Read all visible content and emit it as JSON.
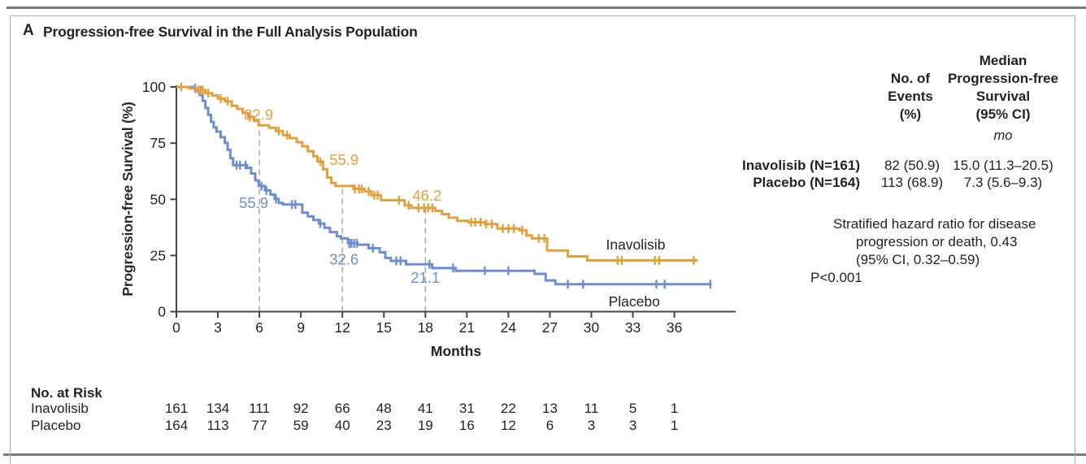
{
  "panel": {
    "label": "A",
    "title": "Progression-free Survival in the Full Analysis Population"
  },
  "colors": {
    "inavolisib": "#e0a13e",
    "placebo": "#6e8fcb",
    "axis": "#454547",
    "text": "#232325",
    "dashed": "#a8aaad",
    "rule": "#777a7c",
    "panel_border": "#aaadb0"
  },
  "chart_data": {
    "type": "line",
    "subtype": "kaplan-meier-step",
    "title": "Progression-free Survival in the Full Analysis Population",
    "xlabel": "Months",
    "ylabel": "Progression-free Survival (%)",
    "xticks": [
      0,
      3,
      6,
      9,
      12,
      15,
      18,
      21,
      24,
      27,
      30,
      33,
      36
    ],
    "yticks": [
      0,
      25,
      50,
      75,
      100
    ],
    "ylim": [
      0,
      100
    ],
    "grid": false,
    "dashed_reference": [
      {
        "month": 6,
        "top_value": 82.9
      },
      {
        "month": 12,
        "top_value": 55.9
      },
      {
        "month": 18,
        "top_value": 46.2
      }
    ],
    "series": [
      {
        "name": "Placebo",
        "color": "#6e8fcb",
        "label": {
          "text": "Placebo",
          "month": 33.1,
          "value": 2.3
        },
        "annotations": [
          {
            "text": "55.9",
            "month": 6,
            "value": 55.9,
            "dx": -7,
            "dy": 27
          },
          {
            "text": "32.6",
            "month": 12,
            "value": 32.6,
            "dx": 2,
            "dy": 32
          },
          {
            "text": "21.1",
            "month": 18,
            "value": 21.1,
            "dx": 0,
            "dy": 23
          }
        ],
        "steps": [
          [
            0,
            100
          ],
          [
            1.2,
            99.4
          ],
          [
            1.5,
            98.2
          ],
          [
            1.7,
            96.3
          ],
          [
            1.9,
            93.8
          ],
          [
            2.1,
            90.7
          ],
          [
            2.3,
            87.6
          ],
          [
            2.5,
            84.5
          ],
          [
            2.7,
            82.0
          ],
          [
            2.9,
            80.1
          ],
          [
            3.2,
            77.6
          ],
          [
            3.5,
            75.1
          ],
          [
            3.7,
            72.0
          ],
          [
            3.9,
            68.3
          ],
          [
            4.1,
            65.2
          ],
          [
            5.1,
            64.0
          ],
          [
            5.4,
            61.5
          ],
          [
            5.7,
            58.4
          ],
          [
            5.95,
            55.9
          ],
          [
            6.4,
            54.0
          ],
          [
            6.8,
            52.1
          ],
          [
            7.1,
            50.2
          ],
          [
            7.4,
            48.4
          ],
          [
            7.7,
            47.7
          ],
          [
            9.1,
            44.0
          ],
          [
            9.5,
            42.4
          ],
          [
            9.9,
            40.8
          ],
          [
            10.3,
            39.2
          ],
          [
            10.7,
            37.3
          ],
          [
            11.1,
            35.4
          ],
          [
            11.6,
            33.5
          ],
          [
            11.9,
            32.6
          ],
          [
            12.4,
            30.4
          ],
          [
            13.1,
            29.8
          ],
          [
            13.9,
            28.2
          ],
          [
            14.7,
            26.4
          ],
          [
            15.1,
            23.9
          ],
          [
            15.5,
            22.6
          ],
          [
            16.6,
            21.1
          ],
          [
            18.5,
            19.4
          ],
          [
            20.2,
            18.2
          ],
          [
            25.9,
            16.8
          ],
          [
            26.7,
            13.9
          ],
          [
            27.4,
            12.2
          ],
          [
            38.7,
            12.2
          ]
        ],
        "censors": [
          1.35,
          4.35,
          4.6,
          5.0,
          6.15,
          6.5,
          7.2,
          8.35,
          8.6,
          10.4,
          12.5,
          12.65,
          12.85,
          13.05,
          14.2,
          15.9,
          16.2,
          18.3,
          20.0,
          22.3,
          24.0,
          28.3,
          29.4,
          34.7,
          35.3,
          38.6
        ]
      },
      {
        "name": "Inavolisib",
        "color": "#e0a13e",
        "label": {
          "text": "Inavolisib",
          "month": 33.2,
          "value": 27.6
        },
        "annotations": [
          {
            "text": "82.9",
            "month": 6,
            "value": 82.9,
            "dx": -1,
            "dy": -7
          },
          {
            "text": "55.9",
            "month": 12,
            "value": 55.9,
            "dx": 2,
            "dy": -26
          },
          {
            "text": "46.2",
            "month": 18,
            "value": 46.2,
            "dx": 2,
            "dy": -9
          }
        ],
        "steps": [
          [
            0,
            100
          ],
          [
            0.9,
            99.3
          ],
          [
            1.4,
            98.6
          ],
          [
            2.1,
            97.2
          ],
          [
            2.6,
            96.2
          ],
          [
            3.0,
            94.8
          ],
          [
            3.5,
            93.6
          ],
          [
            4.0,
            91.6
          ],
          [
            4.4,
            90.2
          ],
          [
            4.8,
            88.4
          ],
          [
            5.2,
            86.6
          ],
          [
            5.6,
            84.9
          ],
          [
            5.95,
            82.9
          ],
          [
            6.7,
            81.8
          ],
          [
            7.2,
            80.4
          ],
          [
            7.7,
            78.6
          ],
          [
            8.2,
            77.2
          ],
          [
            8.7,
            75.4
          ],
          [
            9.1,
            73.6
          ],
          [
            9.5,
            71.4
          ],
          [
            9.9,
            69.2
          ],
          [
            10.2,
            66.8
          ],
          [
            10.6,
            63.4
          ],
          [
            10.9,
            59.7
          ],
          [
            11.2,
            57.2
          ],
          [
            11.5,
            55.9
          ],
          [
            12.8,
            54.6
          ],
          [
            13.6,
            53.5
          ],
          [
            14.1,
            51.8
          ],
          [
            14.8,
            49.6
          ],
          [
            16.5,
            47.3
          ],
          [
            17.0,
            46.2
          ],
          [
            18.7,
            44.8
          ],
          [
            19.2,
            43.4
          ],
          [
            19.7,
            41.8
          ],
          [
            20.3,
            40.4
          ],
          [
            21.1,
            39.8
          ],
          [
            22.3,
            39.0
          ],
          [
            23.2,
            37.0
          ],
          [
            24.8,
            36.2
          ],
          [
            25.3,
            33.9
          ],
          [
            25.7,
            32.6
          ],
          [
            26.8,
            27.2
          ],
          [
            28.3,
            24.6
          ],
          [
            29.7,
            22.8
          ],
          [
            37.7,
            22.8
          ]
        ],
        "censors": [
          0.35,
          1.6,
          1.75,
          1.9,
          2.3,
          3.2,
          3.7,
          5.3,
          7.4,
          8.0,
          10.4,
          12.9,
          13.2,
          13.4,
          13.9,
          14.3,
          14.55,
          16.1,
          16.8,
          17.5,
          17.9,
          18.2,
          18.5,
          21.3,
          21.6,
          22.0,
          22.4,
          22.8,
          23.6,
          24.0,
          24.4,
          25.0,
          26.2,
          26.6,
          31.9,
          32.2,
          34.6,
          34.9,
          37.4
        ]
      }
    ]
  },
  "summary_table": {
    "col1_header": "No. of\nEvents\n(%)",
    "col2_header": "Median\nProgression-free\nSurvival\n(95% CI)",
    "unit_row": "mo",
    "rows": [
      {
        "label": "Inavolisib (N=161)",
        "events": "82 (50.9)",
        "median": "15.0 (11.3–20.5)"
      },
      {
        "label": "Placebo (N=164)",
        "events": "113 (68.9)",
        "median": "7.3 (5.6–9.3)"
      }
    ]
  },
  "hazard_note": {
    "line1": "Stratified hazard ratio for disease",
    "line2": "progression or death, 0.43",
    "line3": "(95% CI, 0.32–0.59)",
    "p_value": "P<0.001"
  },
  "risk_table": {
    "title": "No. at Risk",
    "months": [
      0,
      3,
      6,
      9,
      12,
      15,
      18,
      21,
      24,
      27,
      30,
      33,
      36
    ],
    "rows": [
      {
        "label": "Inavolisib",
        "counts": [
          "161",
          "134",
          "111",
          "92",
          "66",
          "48",
          "41",
          "31",
          "22",
          "13",
          "11",
          "5",
          "1"
        ]
      },
      {
        "label": "Placebo",
        "counts": [
          "164",
          "113",
          "77",
          "59",
          "40",
          "23",
          "19",
          "16",
          "12",
          "6",
          "3",
          "3",
          "1"
        ]
      }
    ]
  }
}
